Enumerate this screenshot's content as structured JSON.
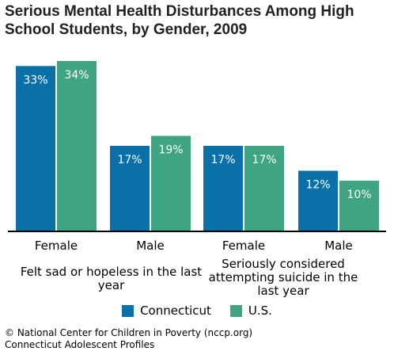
{
  "chart_data": {
    "type": "bar",
    "title": "Serious Mental Health Disturbances Among High School Students, by Gender, 2009",
    "groups": [
      {
        "label": "Felt sad or hopeless in the last year",
        "categories": [
          "Female",
          "Male"
        ]
      },
      {
        "label": "Seriously considered attempting suicide in the last year",
        "categories": [
          "Female",
          "Male"
        ]
      }
    ],
    "categories": [
      "Female",
      "Male",
      "Female",
      "Male"
    ],
    "series": [
      {
        "name": "Connecticut",
        "color": "#0a71a8",
        "values": [
          33,
          17,
          17,
          12
        ],
        "labels": [
          "33%",
          "17%",
          "17%",
          "12%"
        ]
      },
      {
        "name": "U.S.",
        "color": "#3ea482",
        "values": [
          34,
          19,
          17,
          10
        ],
        "labels": [
          "34%",
          "19%",
          "17%",
          "10%"
        ]
      }
    ],
    "ylim": [
      0,
      34
    ],
    "grid": false,
    "legend_position": "bottom"
  },
  "footer": {
    "line1": "© National Center for Children in Poverty (nccp.org)",
    "line2": "Connecticut Adolescent Profiles"
  }
}
